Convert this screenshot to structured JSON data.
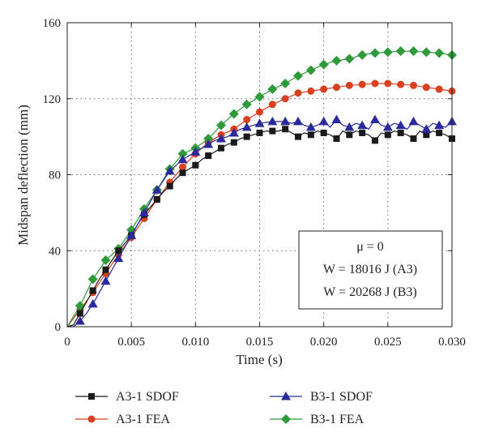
{
  "chart_data": {
    "type": "line",
    "xlabel": "Time (s)",
    "ylabel": "Midspan deflection (mm)",
    "xlim": [
      0,
      0.03
    ],
    "ylim": [
      0,
      160
    ],
    "x_ticks": [
      "0",
      "0.005",
      "0.010",
      "0.015",
      "0.020",
      "0.025",
      "0.030"
    ],
    "y_ticks": [
      "0",
      "40",
      "80",
      "120",
      "160"
    ],
    "grid": "dotted",
    "legend_position": "bottom",
    "annotation": {
      "lines": [
        "μ = 0",
        "W = 18016 J (A3)",
        "W = 20268 J (B3)"
      ]
    },
    "series": [
      {
        "name": "A3-1 SDOF",
        "color": "#1a1a1a",
        "marker": "square",
        "x": [
          0,
          0.0005,
          0.001,
          0.0015,
          0.002,
          0.0025,
          0.003,
          0.0035,
          0.004,
          0.0045,
          0.005,
          0.0055,
          0.006,
          0.0065,
          0.007,
          0.0075,
          0.008,
          0.0085,
          0.009,
          0.0095,
          0.01,
          0.0105,
          0.011,
          0.0115,
          0.012,
          0.0125,
          0.013,
          0.0135,
          0.014,
          0.0145,
          0.015,
          0.0155,
          0.016,
          0.0165,
          0.017,
          0.0175,
          0.018,
          0.0185,
          0.019,
          0.0195,
          0.02,
          0.0205,
          0.021,
          0.0215,
          0.022,
          0.0225,
          0.023,
          0.0235,
          0.024,
          0.0245,
          0.025,
          0.0255,
          0.026,
          0.0265,
          0.027,
          0.0275,
          0.028,
          0.0285,
          0.029,
          0.0295,
          0.03
        ],
        "values": [
          0,
          1,
          7,
          13,
          19,
          25,
          30,
          35,
          40,
          44,
          48,
          54,
          59,
          63,
          67,
          71,
          74,
          78,
          81,
          83,
          85,
          88,
          90,
          92,
          94,
          96,
          97,
          99,
          100,
          101,
          102,
          103,
          103,
          103,
          104,
          102,
          100,
          102,
          101,
          103,
          102,
          101,
          99,
          103,
          101,
          103,
          102,
          101,
          98,
          102,
          101,
          103,
          102,
          101,
          99,
          103,
          101,
          103,
          102,
          101,
          99
        ],
        "markers_x": [
          0.001,
          0.002,
          0.003,
          0.004,
          0.005,
          0.006,
          0.007,
          0.008,
          0.009,
          0.01,
          0.011,
          0.012,
          0.013,
          0.014,
          0.015,
          0.016,
          0.017,
          0.018,
          0.019,
          0.02,
          0.021,
          0.022,
          0.023,
          0.024,
          0.025,
          0.026,
          0.027,
          0.028,
          0.029,
          0.03
        ]
      },
      {
        "name": "A3-1 FEA",
        "color": "#d94020",
        "marker": "circle",
        "x": [
          0,
          0.001,
          0.002,
          0.003,
          0.004,
          0.005,
          0.006,
          0.007,
          0.008,
          0.009,
          0.01,
          0.011,
          0.012,
          0.013,
          0.014,
          0.015,
          0.016,
          0.017,
          0.018,
          0.019,
          0.02,
          0.021,
          0.022,
          0.023,
          0.024,
          0.025,
          0.026,
          0.027,
          0.028,
          0.029,
          0.03
        ],
        "values": [
          0,
          9,
          18,
          28,
          38,
          47,
          57,
          67,
          76,
          84,
          91,
          97,
          101,
          104,
          109,
          113,
          117,
          120,
          123,
          124,
          125,
          126,
          127,
          127.5,
          128,
          128,
          127.5,
          127,
          126,
          125,
          124
        ],
        "markers_x": [
          0.001,
          0.002,
          0.003,
          0.004,
          0.005,
          0.006,
          0.007,
          0.008,
          0.009,
          0.01,
          0.011,
          0.012,
          0.013,
          0.014,
          0.015,
          0.016,
          0.017,
          0.018,
          0.019,
          0.02,
          0.021,
          0.022,
          0.023,
          0.024,
          0.025,
          0.026,
          0.027,
          0.028,
          0.029,
          0.03
        ]
      },
      {
        "name": "B3-1 SDOF",
        "color": "#2a2a9a",
        "marker": "triangle",
        "x": [
          0,
          0.0005,
          0.001,
          0.0015,
          0.002,
          0.0025,
          0.003,
          0.0035,
          0.004,
          0.0045,
          0.005,
          0.0055,
          0.006,
          0.0065,
          0.007,
          0.0075,
          0.008,
          0.0085,
          0.009,
          0.0095,
          0.01,
          0.0105,
          0.011,
          0.0115,
          0.012,
          0.0125,
          0.013,
          0.0135,
          0.014,
          0.0145,
          0.015,
          0.0155,
          0.016,
          0.0165,
          0.017,
          0.0175,
          0.018,
          0.0185,
          0.019,
          0.0195,
          0.02,
          0.0205,
          0.021,
          0.0215,
          0.022,
          0.0225,
          0.023,
          0.0235,
          0.024,
          0.0245,
          0.025,
          0.0255,
          0.026,
          0.0265,
          0.027,
          0.0275,
          0.028,
          0.0285,
          0.029,
          0.0295,
          0.03
        ],
        "values": [
          0,
          0,
          3,
          7,
          12,
          18,
          24,
          30,
          36,
          42,
          48,
          54,
          60,
          66,
          72,
          77,
          82,
          85,
          88,
          90,
          92,
          94,
          96,
          98,
          99,
          100,
          102,
          104,
          105,
          106,
          107,
          107.5,
          108,
          108,
          108,
          107,
          108,
          106,
          105,
          106,
          108,
          105,
          109,
          106,
          105,
          107,
          106,
          104,
          109,
          106,
          105,
          107,
          106,
          104,
          108,
          106,
          104,
          107,
          106,
          105,
          108
        ],
        "markers_x": [
          0.001,
          0.002,
          0.003,
          0.004,
          0.005,
          0.006,
          0.007,
          0.008,
          0.009,
          0.01,
          0.011,
          0.012,
          0.013,
          0.014,
          0.015,
          0.016,
          0.017,
          0.018,
          0.019,
          0.02,
          0.021,
          0.022,
          0.023,
          0.024,
          0.025,
          0.026,
          0.027,
          0.028,
          0.029,
          0.03
        ]
      },
      {
        "name": "B3-1 FEA",
        "color": "#2e9a3a",
        "marker": "diamond",
        "x": [
          0,
          0.001,
          0.002,
          0.003,
          0.004,
          0.005,
          0.006,
          0.007,
          0.008,
          0.009,
          0.01,
          0.011,
          0.012,
          0.013,
          0.014,
          0.015,
          0.016,
          0.017,
          0.018,
          0.019,
          0.02,
          0.021,
          0.022,
          0.023,
          0.024,
          0.025,
          0.026,
          0.027,
          0.028,
          0.029,
          0.03
        ],
        "values": [
          0,
          11,
          25,
          35,
          41,
          51,
          62,
          72,
          83,
          91,
          94,
          99,
          106,
          112,
          117,
          121,
          125,
          128,
          132,
          135,
          138,
          140,
          141,
          143,
          144,
          144.5,
          145,
          145,
          144.5,
          144,
          143
        ],
        "markers_x": [
          0.001,
          0.002,
          0.003,
          0.004,
          0.005,
          0.006,
          0.007,
          0.008,
          0.009,
          0.01,
          0.011,
          0.012,
          0.013,
          0.014,
          0.015,
          0.016,
          0.017,
          0.018,
          0.019,
          0.02,
          0.021,
          0.022,
          0.023,
          0.024,
          0.025,
          0.026,
          0.027,
          0.028,
          0.029,
          0.03
        ]
      }
    ]
  }
}
